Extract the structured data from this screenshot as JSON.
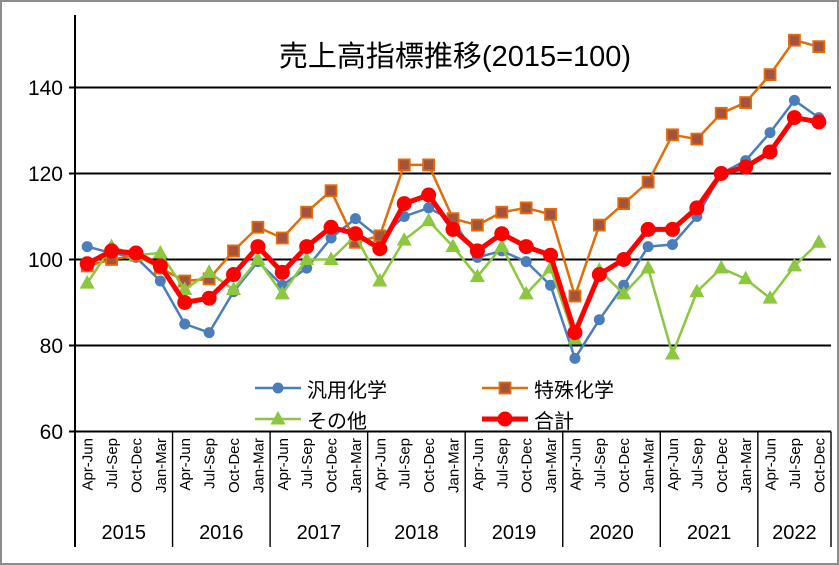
{
  "chart_data": {
    "type": "line",
    "title": "売上高指標推移(2015=100)",
    "background": "#FFFFFF",
    "axis_color": "#000000",
    "grid_on": true,
    "legend_position": "inside-bottom-center",
    "y_axis": {
      "min": 60,
      "max": 156,
      "ticks": [
        60,
        80,
        100,
        120,
        140
      ]
    },
    "x_axis": {
      "quarters": [
        "Apr-Jun",
        "Jul-Sep",
        "Oct-Dec",
        "Jan-Mar",
        "Apr-Jun",
        "Jul-Sep",
        "Oct-Dec",
        "Jan-Mar",
        "Apr-Jun",
        "Jul-Sep",
        "Oct-Dec",
        "Jan-Mar",
        "Apr-Jun",
        "Jul-Sep",
        "Oct-Dec",
        "Jan-Mar",
        "Apr-Jun",
        "Jul-Sep",
        "Oct-Dec",
        "Jan-Mar",
        "Apr-Jun",
        "Jul-Sep",
        "Oct-Dec",
        "Jan-Mar",
        "Apr-Jun",
        "Jul-Sep",
        "Oct-Dec",
        "Jan-Mar",
        "Apr-Jun",
        "Jul-Sep",
        "Oct-Dec"
      ],
      "year_groups": [
        {
          "label": "2015",
          "count": 4
        },
        {
          "label": "2016",
          "count": 4
        },
        {
          "label": "2017",
          "count": 4
        },
        {
          "label": "2018",
          "count": 4
        },
        {
          "label": "2019",
          "count": 4
        },
        {
          "label": "2020",
          "count": 4
        },
        {
          "label": "2021",
          "count": 4
        },
        {
          "label": "2022",
          "count": 3
        }
      ]
    },
    "series": [
      {
        "id": "general-purpose",
        "name": "汎用化学",
        "color": "#4A7EBB",
        "marker": "circle",
        "marker_size": 11,
        "line_width": 2.5,
        "values": [
          103,
          101.5,
          100.5,
          95,
          85,
          83,
          92.5,
          99.5,
          94,
          98,
          105,
          109.5,
          105,
          110,
          112,
          109,
          100.5,
          102,
          99.5,
          94,
          77,
          86,
          94,
          103,
          103.5,
          110,
          120,
          123,
          129.5,
          137,
          133
        ]
      },
      {
        "id": "specialty",
        "name": "特殊化学",
        "color": "#E36C09",
        "marker": "square",
        "marker_fill": "#A5533C",
        "marker_size": 11,
        "line_width": 2.5,
        "values": [
          98.5,
          100,
          101,
          98,
          95,
          95.5,
          102,
          107.5,
          105,
          111,
          116,
          104,
          105.5,
          122,
          122,
          109.5,
          108,
          111,
          112,
          110.5,
          91.5,
          108,
          113,
          118,
          129,
          128,
          134,
          136.5,
          143,
          151,
          149.5
        ]
      },
      {
        "id": "others",
        "name": "その他",
        "color": "#8DC63F",
        "marker": "triangle",
        "marker_size": 13,
        "line_width": 2.5,
        "values": [
          94.5,
          103,
          101,
          101.5,
          93,
          97,
          93,
          100,
          92,
          100,
          100,
          105.5,
          95,
          104.5,
          109,
          103,
          96,
          103,
          92,
          98,
          81.5,
          97.5,
          92,
          98,
          78,
          92.5,
          98,
          95.5,
          91,
          98.5,
          104
        ]
      },
      {
        "id": "total",
        "name": "合計",
        "color": "#FF0000",
        "marker": "circle",
        "marker_size": 15,
        "line_width": 5,
        "values": [
          99,
          102,
          101.5,
          98.5,
          90,
          91,
          96.5,
          103,
          97,
          103,
          107.5,
          106,
          102.5,
          113,
          115,
          107,
          102,
          106,
          103,
          101,
          83,
          96.5,
          100,
          107,
          107,
          112,
          120,
          121.5,
          125,
          133,
          132
        ]
      }
    ]
  }
}
